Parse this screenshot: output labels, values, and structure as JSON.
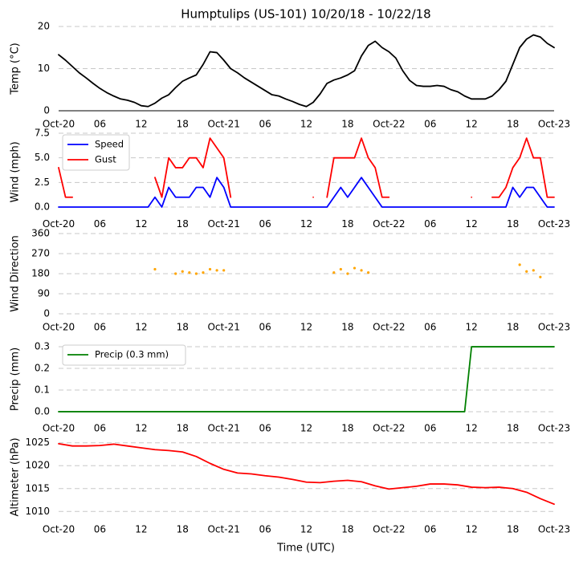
{
  "chart_data": [
    {
      "type": "line",
      "title": "Humptulips (US-101) 10/20/18 - 10/22/18",
      "ylabel": "Temp (°C)",
      "x": [
        0,
        1,
        2,
        3,
        4,
        5,
        6,
        7,
        8,
        9,
        10,
        11,
        12,
        13,
        14,
        15,
        16,
        17,
        18,
        19,
        20,
        21,
        22,
        23,
        24,
        25,
        26,
        27,
        28,
        29,
        30,
        31,
        32,
        33,
        34,
        35,
        36,
        37,
        38,
        39,
        40,
        41,
        42,
        43,
        44,
        45,
        46,
        47,
        48,
        49,
        50,
        51,
        52,
        53,
        54,
        55,
        56,
        57,
        58,
        59,
        60,
        61,
        62,
        63,
        64,
        65,
        66,
        67,
        68,
        69,
        70,
        71,
        72
      ],
      "series": [
        {
          "name": "Temp",
          "color": "#000000",
          "values": [
            13.3,
            12,
            10.5,
            9,
            7.8,
            6.5,
            5.3,
            4.3,
            3.5,
            2.8,
            2.5,
            2,
            1.2,
            1,
            1.8,
            3,
            3.8,
            5.5,
            7,
            7.8,
            8.5,
            11,
            14,
            13.8,
            12,
            10,
            9,
            7.8,
            6.8,
            5.8,
            4.8,
            3.8,
            3.5,
            2.8,
            2.2,
            1.5,
            1,
            2,
            4,
            6.5,
            7.3,
            7.8,
            8.5,
            9.5,
            13,
            15.5,
            16.5,
            15,
            14,
            12.5,
            9.5,
            7.2,
            6,
            5.8,
            5.8,
            6,
            5.8,
            5,
            4.5,
            3.5,
            2.8,
            2.8,
            2.8,
            3.5,
            5,
            7,
            11,
            15,
            17,
            18,
            17.5,
            16,
            15
          ]
        }
      ],
      "xlim": [
        0,
        72
      ],
      "xticks": [
        {
          "value": 0,
          "label": "Oct-20"
        },
        {
          "value": 6,
          "label": "06"
        },
        12,
        18,
        {
          "value": 24,
          "label": "Oct-21"
        },
        {
          "value": 30,
          "label": "06"
        },
        {
          "value": 36,
          "label": "12"
        },
        {
          "value": 42,
          "label": "18"
        },
        {
          "value": 48,
          "label": "Oct-22"
        },
        {
          "value": 54,
          "label": "06"
        },
        {
          "value": 60,
          "label": "12"
        },
        {
          "value": 66,
          "label": "18"
        },
        {
          "value": 72,
          "label": "Oct-23"
        }
      ],
      "ylim": [
        0,
        20
      ],
      "yticks": [
        0,
        10,
        20
      ],
      "grid": true
    },
    {
      "type": "line",
      "ylabel": "Wind (mph)",
      "legend": "upper left",
      "x": [
        0,
        1,
        2,
        3,
        4,
        5,
        6,
        7,
        8,
        9,
        10,
        11,
        12,
        13,
        14,
        15,
        16,
        17,
        18,
        19,
        20,
        21,
        22,
        23,
        24,
        25,
        26,
        27,
        28,
        29,
        30,
        31,
        32,
        33,
        34,
        35,
        36,
        37,
        38,
        39,
        40,
        41,
        42,
        43,
        44,
        45,
        46,
        47,
        48,
        49,
        50,
        51,
        52,
        53,
        54,
        55,
        56,
        57,
        58,
        59,
        60,
        61,
        62,
        63,
        64,
        65,
        66,
        67,
        68,
        69,
        70,
        71,
        72
      ],
      "series": [
        {
          "name": "Speed",
          "color": "#0000ff",
          "values": [
            0,
            0,
            0,
            0,
            0,
            0,
            0,
            0,
            0,
            0,
            0,
            0,
            0,
            0,
            1,
            0,
            2,
            1,
            1,
            1,
            2,
            2,
            1,
            3,
            2,
            0,
            0,
            0,
            0,
            0,
            0,
            0,
            0,
            0,
            0,
            0,
            0,
            0,
            0,
            0,
            1,
            2,
            1,
            2,
            3,
            2,
            1,
            0,
            0,
            0,
            0,
            0,
            0,
            0,
            0,
            0,
            0,
            0,
            0,
            0,
            0,
            0,
            0,
            0,
            0,
            0,
            2,
            1,
            2,
            2,
            1,
            0,
            0
          ]
        },
        {
          "name": "Gust",
          "color": "#ff0000",
          "values": [
            4,
            1,
            1,
            null,
            null,
            null,
            null,
            null,
            null,
            null,
            null,
            null,
            null,
            null,
            3,
            1,
            5,
            4,
            4,
            5,
            5,
            4,
            7,
            6,
            5,
            1,
            null,
            null,
            null,
            null,
            null,
            null,
            null,
            null,
            null,
            null,
            null,
            1,
            null,
            1,
            5,
            5,
            5,
            5,
            7,
            5,
            4,
            1,
            1,
            null,
            null,
            null,
            null,
            null,
            null,
            null,
            null,
            null,
            null,
            null,
            1,
            null,
            null,
            1,
            1,
            2,
            4,
            5,
            7,
            5,
            5,
            1,
            1
          ]
        }
      ],
      "xlim": [
        0,
        72
      ],
      "xticks": [
        {
          "value": 0,
          "label": "Oct-20"
        },
        {
          "value": 6,
          "label": "06"
        },
        12,
        18,
        {
          "value": 24,
          "label": "Oct-21"
        },
        {
          "value": 30,
          "label": "06"
        },
        {
          "value": 36,
          "label": "12"
        },
        {
          "value": 42,
          "label": "18"
        },
        {
          "value": 48,
          "label": "Oct-22"
        },
        {
          "value": 54,
          "label": "06"
        },
        {
          "value": 60,
          "label": "12"
        },
        {
          "value": 66,
          "label": "18"
        },
        {
          "value": 72,
          "label": "Oct-23"
        }
      ],
      "ylim": [
        -0.375,
        7.5
      ],
      "yticks": [
        {
          "value": 0,
          "label": "0.0"
        },
        2.5,
        {
          "value": 5,
          "label": "5.0"
        },
        7.5
      ],
      "grid": true
    },
    {
      "type": "scatter",
      "ylabel": "Wind Direction",
      "x": [
        14,
        17,
        18,
        19,
        20,
        21,
        22,
        23,
        24,
        40,
        41,
        42,
        43,
        44,
        45,
        67,
        68,
        69,
        70
      ],
      "series": [
        {
          "name": "Direction",
          "color": "#ffa500",
          "values": [
            200,
            180,
            190,
            185,
            180,
            185,
            200,
            195,
            195,
            185,
            200,
            180,
            205,
            195,
            185,
            220,
            190,
            195,
            165
          ]
        }
      ],
      "xlim": [
        0,
        72
      ],
      "xticks": [
        {
          "value": 0,
          "label": "Oct-20"
        },
        {
          "value": 6,
          "label": "06"
        },
        12,
        18,
        {
          "value": 24,
          "label": "Oct-21"
        },
        {
          "value": 30,
          "label": "06"
        },
        {
          "value": 36,
          "label": "12"
        },
        {
          "value": 42,
          "label": "18"
        },
        {
          "value": 48,
          "label": "Oct-22"
        },
        {
          "value": 54,
          "label": "06"
        },
        {
          "value": 60,
          "label": "12"
        },
        {
          "value": 66,
          "label": "18"
        },
        {
          "value": 72,
          "label": "Oct-23"
        }
      ],
      "ylim": [
        0,
        360
      ],
      "yticks": [
        0,
        90,
        180,
        270,
        360
      ],
      "grid": true
    },
    {
      "type": "line",
      "ylabel": "Precip (mm)",
      "legend": "upper left",
      "x": [
        0,
        59,
        60,
        72
      ],
      "series": [
        {
          "name": "Precip (0.3 mm)",
          "color": "#008000",
          "values": [
            0,
            0,
            0.3,
            0.3
          ]
        }
      ],
      "xlim": [
        0,
        72
      ],
      "xticks": [
        {
          "value": 0,
          "label": "Oct-20"
        },
        {
          "value": 6,
          "label": "06"
        },
        12,
        18,
        {
          "value": 24,
          "label": "Oct-21"
        },
        {
          "value": 30,
          "label": "06"
        },
        {
          "value": 36,
          "label": "12"
        },
        {
          "value": 42,
          "label": "18"
        },
        {
          "value": 48,
          "label": "Oct-22"
        },
        {
          "value": 54,
          "label": "06"
        },
        {
          "value": 60,
          "label": "12"
        },
        {
          "value": 66,
          "label": "18"
        },
        {
          "value": 72,
          "label": "Oct-23"
        }
      ],
      "ylim": [
        -0.015,
        0.315
      ],
      "yticks": [
        {
          "value": 0,
          "label": "0.0"
        },
        0.1,
        0.2,
        0.3
      ],
      "grid": true
    },
    {
      "type": "line",
      "ylabel": "Altimeter (hPa)",
      "xlabel": "Time (UTC)",
      "x": [
        0,
        2,
        4,
        6,
        8,
        10,
        12,
        14,
        16,
        18,
        20,
        22,
        24,
        26,
        28,
        30,
        32,
        34,
        36,
        38,
        40,
        42,
        44,
        46,
        48,
        50,
        52,
        54,
        56,
        58,
        60,
        62,
        64,
        66,
        68,
        70,
        72
      ],
      "series": [
        {
          "name": "Altimeter",
          "color": "#ff0000",
          "values": [
            1024.8,
            1024.3,
            1024.3,
            1024.4,
            1024.7,
            1024.3,
            1023.9,
            1023.5,
            1023.3,
            1023,
            1022,
            1020.5,
            1019.2,
            1018.4,
            1018.2,
            1017.8,
            1017.5,
            1017,
            1016.4,
            1016.3,
            1016.6,
            1016.8,
            1016.5,
            1015.6,
            1014.9,
            1015.2,
            1015.5,
            1016,
            1016,
            1015.8,
            1015.3,
            1015.2,
            1015.3,
            1015,
            1014.2,
            1012.8,
            1011.6
          ]
        }
      ],
      "xlim": [
        0,
        72
      ],
      "xticks": [
        {
          "value": 0,
          "label": "Oct-20"
        },
        {
          "value": 6,
          "label": "06"
        },
        12,
        18,
        {
          "value": 24,
          "label": "Oct-21"
        },
        {
          "value": 30,
          "label": "06"
        },
        {
          "value": 36,
          "label": "12"
        },
        {
          "value": 42,
          "label": "18"
        },
        {
          "value": 48,
          "label": "Oct-22"
        },
        {
          "value": 54,
          "label": "06"
        },
        {
          "value": 60,
          "label": "12"
        },
        {
          "value": 66,
          "label": "18"
        },
        {
          "value": 72,
          "label": "Oct-23"
        }
      ],
      "ylim": [
        1009,
        1026
      ],
      "yticks": [
        1010,
        1015,
        1020,
        1025
      ],
      "grid": true
    }
  ]
}
